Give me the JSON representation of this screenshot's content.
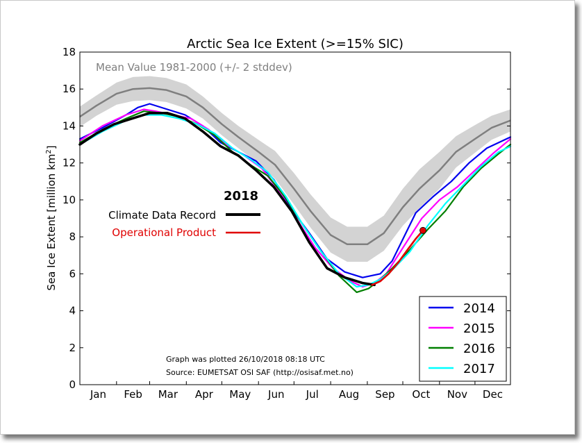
{
  "chart_data": {
    "type": "line",
    "title": "Arctic Sea Ice Extent (>=15% SIC)",
    "ylabel": "Sea Ice Extent [million km",
    "ylabel_sup": "2",
    "ylabel_end": "]",
    "ylim": [
      0,
      18
    ],
    "xlim_day": [
      1,
      365
    ],
    "yticks": [
      "0",
      "2",
      "4",
      "6",
      "8",
      "10",
      "12",
      "14",
      "16",
      "18"
    ],
    "months": [
      "Jan",
      "Feb",
      "Mar",
      "Apr",
      "May",
      "Jun",
      "Jul",
      "Aug",
      "Sep",
      "Oct",
      "Nov",
      "Dec"
    ],
    "mean_label": "Mean Value 1981-2000 (+/- 2 stddev)",
    "mean": {
      "color": "#7f7f7f",
      "x": [
        1,
        15,
        32,
        46,
        60,
        74,
        91,
        105,
        121,
        135,
        152,
        166,
        182,
        196,
        213,
        227,
        244,
        258,
        274,
        288,
        305,
        319,
        335,
        349,
        365
      ],
      "y": [
        14.5,
        15.1,
        15.75,
        16.0,
        16.05,
        15.95,
        15.6,
        15.0,
        14.1,
        13.4,
        12.6,
        11.9,
        10.6,
        9.4,
        8.1,
        7.6,
        7.6,
        8.2,
        9.6,
        10.6,
        11.6,
        12.6,
        13.3,
        13.9,
        14.3
      ],
      "band": [
        0.55,
        0.55,
        0.6,
        0.65,
        0.65,
        0.65,
        0.65,
        0.6,
        0.6,
        0.6,
        0.65,
        0.75,
        0.85,
        0.9,
        0.95,
        0.95,
        0.95,
        0.95,
        1.0,
        1.05,
        1.0,
        0.85,
        0.75,
        0.65,
        0.6
      ]
    },
    "legend_2018_title": "2018",
    "legend_2018": [
      {
        "name": "Climate Data Record",
        "color": "#000000"
      },
      {
        "name": "Operational Product",
        "color": "#e00000"
      }
    ],
    "legend_placement": "lower-right",
    "series": [
      {
        "name": "2014",
        "color": "#0000ee",
        "x": [
          1,
          20,
          40,
          50,
          60,
          75,
          90,
          105,
          120,
          135,
          150,
          165,
          180,
          195,
          210,
          225,
          240,
          255,
          265,
          275,
          285,
          300,
          315,
          330,
          345,
          365
        ],
        "y": [
          13.3,
          13.9,
          14.6,
          15.0,
          15.2,
          14.9,
          14.6,
          14.0,
          13.1,
          12.6,
          12.1,
          11.1,
          9.5,
          8.2,
          6.8,
          6.1,
          5.8,
          6.0,
          6.7,
          8.0,
          9.3,
          10.2,
          11.0,
          12.0,
          12.8,
          13.4
        ]
      },
      {
        "name": "2015",
        "color": "#ff00ff",
        "x": [
          1,
          20,
          40,
          55,
          65,
          80,
          95,
          110,
          125,
          140,
          155,
          170,
          185,
          200,
          215,
          230,
          240,
          250,
          260,
          275,
          290,
          305,
          320,
          335,
          350,
          365
        ],
        "y": [
          13.2,
          14.0,
          14.6,
          14.9,
          14.8,
          14.6,
          14.4,
          13.8,
          13.0,
          12.4,
          11.7,
          10.4,
          8.9,
          7.4,
          6.3,
          5.6,
          5.3,
          5.5,
          6.0,
          7.5,
          9.0,
          10.0,
          10.7,
          11.6,
          12.5,
          13.3
        ]
      },
      {
        "name": "2016",
        "color": "#007f00",
        "x": [
          1,
          20,
          40,
          55,
          70,
          85,
          100,
          115,
          130,
          145,
          160,
          175,
          190,
          205,
          220,
          235,
          245,
          255,
          265,
          280,
          295,
          310,
          325,
          340,
          355,
          365
        ],
        "y": [
          13.1,
          13.8,
          14.4,
          14.8,
          14.7,
          14.5,
          14.1,
          13.5,
          12.6,
          11.9,
          11.3,
          10.1,
          8.6,
          7.2,
          5.9,
          5.0,
          5.2,
          5.7,
          6.3,
          7.3,
          8.4,
          9.4,
          10.7,
          11.7,
          12.5,
          13.0
        ]
      },
      {
        "name": "2017",
        "color": "#00ffff",
        "x": [
          1,
          20,
          40,
          55,
          70,
          85,
          100,
          115,
          130,
          145,
          160,
          175,
          190,
          205,
          220,
          235,
          245,
          255,
          265,
          280,
          295,
          310,
          325,
          340,
          355,
          365
        ],
        "y": [
          13.0,
          13.7,
          14.3,
          14.6,
          14.6,
          14.4,
          14.1,
          13.6,
          12.8,
          12.2,
          11.5,
          10.2,
          8.6,
          7.2,
          6.0,
          5.3,
          5.4,
          5.7,
          6.2,
          7.2,
          8.6,
          9.8,
          10.8,
          11.8,
          12.6,
          12.9
        ]
      },
      {
        "name": "2018 Climate Data Record",
        "color": "#000000",
        "x": [
          1,
          15,
          30,
          45,
          60,
          75,
          90,
          105,
          120,
          135,
          150,
          165,
          180,
          195,
          210,
          225,
          240,
          250
        ],
        "y": [
          13.0,
          13.6,
          14.1,
          14.4,
          14.7,
          14.7,
          14.4,
          13.7,
          12.9,
          12.4,
          11.6,
          10.7,
          9.4,
          7.7,
          6.3,
          5.8,
          5.5,
          5.4
        ]
      },
      {
        "name": "2018 Operational Product",
        "color": "#e00000",
        "x": [
          248,
          255,
          262,
          270,
          278,
          285,
          291
        ],
        "y": [
          5.4,
          5.6,
          6.0,
          6.6,
          7.3,
          7.9,
          8.35
        ]
      }
    ],
    "endpoint": {
      "x": 291,
      "y": 8.35,
      "color": "#e00000"
    },
    "footnote": [
      "Graph was plotted 26/10/2018 08:18 UTC",
      "Source: EUMETSAT OSI SAF (http://osisaf.met.no)"
    ]
  }
}
